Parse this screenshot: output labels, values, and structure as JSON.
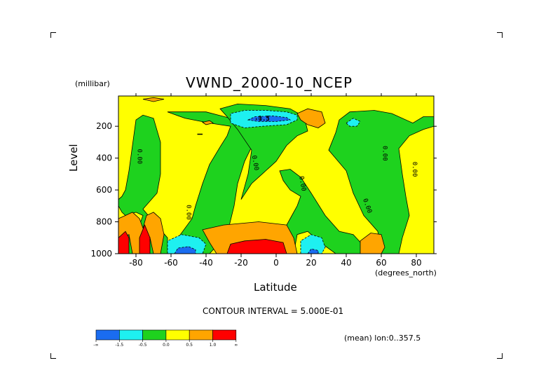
{
  "chart_data": {
    "type": "heatmap",
    "title": "VWND_2000-10_NCEP",
    "units_label": "(millibar)",
    "xlabel": "Latitude",
    "x_units_label": "(degrees_north)",
    "ylabel": "Level",
    "x_range": [
      -90,
      90
    ],
    "y_range": [
      1000,
      10
    ],
    "y_inverted": true,
    "x_ticks": [
      "-80",
      "-60",
      "-40",
      "-20",
      "0",
      "20",
      "40",
      "60",
      "80"
    ],
    "x_tick_values": [
      -80,
      -60,
      -40,
      -20,
      0,
      20,
      40,
      60,
      80
    ],
    "y_ticks": [
      "200",
      "400",
      "600",
      "800",
      "1000"
    ],
    "y_tick_values": [
      200,
      400,
      600,
      800,
      1000
    ],
    "contour_interval_text": "CONTOUR INTERVAL = 5.000E-01",
    "mean_text": "(mean) lon:0..357.5",
    "contour_labels": [
      {
        "text": "0.00",
        "lat": -78,
        "lev": 390,
        "rot": 90
      },
      {
        "text": "0.00",
        "lat": -50,
        "lev": 740,
        "rot": 90
      },
      {
        "text": "0.00",
        "lat": -12,
        "lev": 430,
        "rot": 80
      },
      {
        "text": "0.00",
        "lat": 15,
        "lev": 560,
        "rot": 80
      },
      {
        "text": "0.00",
        "lat": 52,
        "lev": 700,
        "rot": 70
      },
      {
        "text": "0.00",
        "lat": 62,
        "lev": 370,
        "rot": 90
      },
      {
        "text": "0.00",
        "lat": 79,
        "lev": 470,
        "rot": 90
      },
      {
        "text": "-0.5",
        "lat": -8,
        "lev": 155,
        "rot": 0
      },
      {
        "text": "-1.5",
        "lat": -8,
        "lev": 150,
        "rot": 0
      }
    ],
    "colorbar": {
      "colors": [
        "#1a6cf0",
        "#1ef0f0",
        "#1ed21e",
        "#ffff00",
        "#ffa500",
        "#ff0000"
      ],
      "labels": [
        "-∞",
        "-1.5",
        "-0.5",
        "0.0",
        "0.5",
        "1.0",
        "∞"
      ]
    },
    "regions": [
      {
        "level": "green",
        "color": "#1ed21e",
        "pts": [
          [
            -62,
            1000
          ],
          [
            -62,
            900
          ],
          [
            -70,
            800
          ],
          [
            -76,
            720
          ],
          [
            -68,
            620
          ],
          [
            -66,
            500
          ],
          [
            -66,
            300
          ],
          [
            -70,
            150
          ],
          [
            -76,
            130
          ],
          [
            -80,
            160
          ],
          [
            -82,
            320
          ],
          [
            -84,
            480
          ],
          [
            -86,
            600
          ],
          [
            -88,
            640
          ],
          [
            -90,
            660
          ],
          [
            -90,
            700
          ],
          [
            -88,
            740
          ],
          [
            -86,
            760
          ],
          [
            -80,
            740
          ],
          [
            -76,
            760
          ],
          [
            -78,
            820
          ],
          [
            -86,
            850
          ],
          [
            -88,
            800
          ],
          [
            -90,
            780
          ],
          [
            -90,
            1000
          ]
        ]
      },
      {
        "level": "green",
        "color": "#1ed21e",
        "pts": [
          [
            -48,
            780
          ],
          [
            -46,
            700
          ],
          [
            -42,
            560
          ],
          [
            -38,
            440
          ],
          [
            -32,
            330
          ],
          [
            -28,
            260
          ],
          [
            -26,
            200
          ],
          [
            -38,
            180
          ],
          [
            -52,
            150
          ],
          [
            -62,
            110
          ],
          [
            -40,
            110
          ],
          [
            -26,
            150
          ],
          [
            -20,
            230
          ],
          [
            -14,
            330
          ],
          [
            -18,
            420
          ],
          [
            -22,
            560
          ],
          [
            -24,
            700
          ],
          [
            -28,
            880
          ],
          [
            -38,
            1000
          ],
          [
            -56,
            1000
          ],
          [
            -56,
            900
          ]
        ]
      },
      {
        "level": "green",
        "color": "#1ed21e",
        "pts": [
          [
            -22,
            220
          ],
          [
            -28,
            140
          ],
          [
            -32,
            90
          ],
          [
            -22,
            60
          ],
          [
            -6,
            70
          ],
          [
            8,
            90
          ],
          [
            16,
            140
          ],
          [
            18,
            230
          ],
          [
            12,
            260
          ],
          [
            6,
            320
          ],
          [
            0,
            420
          ],
          [
            -8,
            500
          ],
          [
            -14,
            560
          ],
          [
            -20,
            660
          ],
          [
            -16,
            500
          ],
          [
            -14,
            350
          ]
        ]
      },
      {
        "level": "green",
        "color": "#1ed21e",
        "pts": [
          [
            4,
            540
          ],
          [
            2,
            480
          ],
          [
            8,
            470
          ],
          [
            14,
            520
          ],
          [
            20,
            620
          ],
          [
            28,
            760
          ],
          [
            36,
            860
          ],
          [
            44,
            880
          ],
          [
            54,
            1000
          ],
          [
            34,
            1000
          ],
          [
            24,
            920
          ],
          [
            18,
            860
          ],
          [
            12,
            880
          ],
          [
            10,
            1000
          ],
          [
            4,
            1000
          ],
          [
            4,
            860
          ],
          [
            8,
            780
          ],
          [
            12,
            700
          ],
          [
            14,
            640
          ],
          [
            8,
            600
          ]
        ]
      },
      {
        "level": "green",
        "color": "#1ed21e",
        "pts": [
          [
            30,
            350
          ],
          [
            34,
            240
          ],
          [
            36,
            160
          ],
          [
            42,
            110
          ],
          [
            56,
            100
          ],
          [
            66,
            120
          ],
          [
            78,
            180
          ],
          [
            84,
            140
          ],
          [
            90,
            140
          ],
          [
            90,
            200
          ],
          [
            84,
            220
          ],
          [
            76,
            260
          ],
          [
            70,
            340
          ],
          [
            72,
            500
          ],
          [
            74,
            640
          ],
          [
            76,
            760
          ],
          [
            72,
            900
          ],
          [
            70,
            1000
          ],
          [
            60,
            1000
          ],
          [
            58,
            860
          ],
          [
            50,
            760
          ],
          [
            44,
            620
          ],
          [
            40,
            480
          ]
        ]
      },
      {
        "level": "orange",
        "color": "#ffa500",
        "pts": [
          [
            -90,
            1000
          ],
          [
            -90,
            780
          ],
          [
            -86,
            760
          ],
          [
            -82,
            740
          ],
          [
            -78,
            780
          ],
          [
            -76,
            840
          ],
          [
            -74,
            760
          ],
          [
            -70,
            740
          ],
          [
            -66,
            780
          ],
          [
            -64,
            880
          ],
          [
            -66,
            1000
          ],
          [
            -70,
            1000
          ],
          [
            -72,
            900
          ],
          [
            -76,
            1000
          ],
          [
            -82,
            1000
          ],
          [
            -84,
            880
          ],
          [
            -88,
            900
          ]
        ]
      },
      {
        "level": "orange",
        "color": "#ffa500",
        "pts": [
          [
            -76,
            30
          ],
          [
            -70,
            20
          ],
          [
            -64,
            30
          ],
          [
            -70,
            45
          ]
        ]
      },
      {
        "level": "orange",
        "color": "#ffa500",
        "pts": [
          [
            -42,
            850
          ],
          [
            -30,
            820
          ],
          [
            -10,
            800
          ],
          [
            6,
            820
          ],
          [
            10,
            900
          ],
          [
            12,
            1000
          ],
          [
            -34,
            1000
          ],
          [
            -38,
            930
          ]
        ]
      },
      {
        "level": "orange",
        "color": "#ffa500",
        "pts": [
          [
            12,
            120
          ],
          [
            18,
            90
          ],
          [
            26,
            110
          ],
          [
            28,
            180
          ],
          [
            24,
            210
          ],
          [
            18,
            190
          ],
          [
            14,
            160
          ]
        ]
      },
      {
        "level": "orange",
        "color": "#ffa500",
        "pts": [
          [
            48,
            920
          ],
          [
            54,
            870
          ],
          [
            60,
            880
          ],
          [
            62,
            960
          ],
          [
            60,
            1000
          ],
          [
            48,
            1000
          ]
        ]
      },
      {
        "level": "orange",
        "color": "#ffa500",
        "pts": [
          [
            -42,
            175
          ],
          [
            -38,
            165
          ],
          [
            -36,
            180
          ],
          [
            -40,
            190
          ]
        ]
      },
      {
        "level": "red",
        "color": "#ff0000",
        "pts": [
          [
            -90,
            1000
          ],
          [
            -90,
            900
          ],
          [
            -86,
            860
          ],
          [
            -84,
            900
          ],
          [
            -84,
            1000
          ]
        ]
      },
      {
        "level": "red",
        "color": "#ff0000",
        "pts": [
          [
            -78,
            1000
          ],
          [
            -78,
            900
          ],
          [
            -75,
            820
          ],
          [
            -72,
            900
          ],
          [
            -72,
            1000
          ]
        ]
      },
      {
        "level": "red",
        "color": "#ff0000",
        "pts": [
          [
            -28,
            1000
          ],
          [
            -26,
            940
          ],
          [
            -18,
            920
          ],
          [
            -6,
            910
          ],
          [
            4,
            930
          ],
          [
            6,
            1000
          ]
        ]
      },
      {
        "level": "cyan",
        "color": "#1ef0f0",
        "pts": [
          [
            -62,
            1000
          ],
          [
            -62,
            920
          ],
          [
            -54,
            880
          ],
          [
            -44,
            900
          ],
          [
            -40,
            940
          ],
          [
            -42,
            1000
          ]
        ]
      },
      {
        "level": "cyan",
        "color": "#1ef0f0",
        "pts": [
          [
            -26,
            180
          ],
          [
            -26,
            120
          ],
          [
            -18,
            100
          ],
          [
            -6,
            100
          ],
          [
            6,
            110
          ],
          [
            12,
            130
          ],
          [
            12,
            160
          ],
          [
            6,
            190
          ],
          [
            -8,
            200
          ],
          [
            -18,
            210
          ]
        ]
      },
      {
        "level": "cyan",
        "color": "#1ef0f0",
        "pts": [
          [
            14,
            1000
          ],
          [
            14,
            920
          ],
          [
            20,
            880
          ],
          [
            26,
            900
          ],
          [
            28,
            960
          ],
          [
            26,
            1000
          ]
        ]
      },
      {
        "level": "cyan",
        "color": "#1ef0f0",
        "pts": [
          [
            40,
            180
          ],
          [
            44,
            150
          ],
          [
            48,
            170
          ],
          [
            46,
            200
          ],
          [
            42,
            200
          ]
        ]
      },
      {
        "level": "blue",
        "color": "#1a6cf0",
        "pts": [
          [
            -58,
            1000
          ],
          [
            -56,
            965
          ],
          [
            -50,
            955
          ],
          [
            -46,
            975
          ],
          [
            -46,
            1000
          ]
        ]
      },
      {
        "level": "blue",
        "color": "#1a6cf0",
        "pts": [
          [
            -16,
            160
          ],
          [
            -12,
            140
          ],
          [
            -2,
            135
          ],
          [
            6,
            145
          ],
          [
            8,
            160
          ],
          [
            0,
            170
          ],
          [
            -10,
            170
          ]
        ]
      },
      {
        "level": "blue",
        "color": "#1a6cf0",
        "pts": [
          [
            18,
            1000
          ],
          [
            20,
            970
          ],
          [
            24,
            980
          ],
          [
            24,
            1000
          ]
        ]
      }
    ]
  }
}
